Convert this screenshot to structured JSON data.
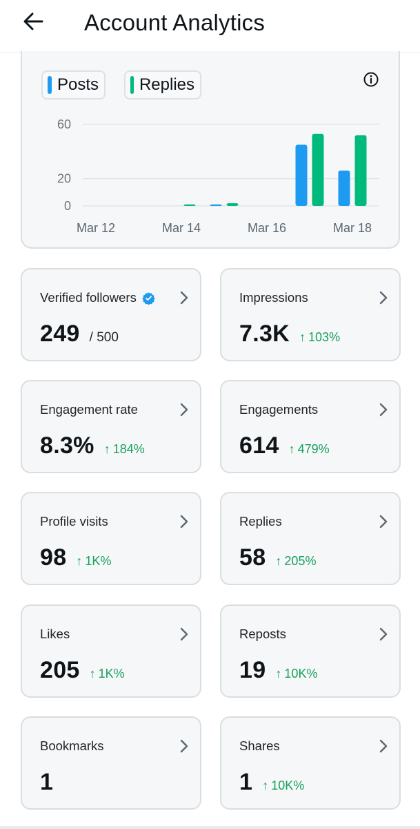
{
  "header": {
    "title": "Account Analytics",
    "back_icon": "arrow-left-icon"
  },
  "chart": {
    "legend": [
      {
        "label": "Posts",
        "color": "#1d9bf0"
      },
      {
        "label": "Replies",
        "color": "#00ba7c"
      }
    ],
    "info_icon": "info-icon"
  },
  "chart_data": {
    "type": "bar",
    "categories": [
      "Mar 12",
      "Mar 13",
      "Mar 14",
      "Mar 15",
      "Mar 16",
      "Mar 17",
      "Mar 18"
    ],
    "x_tick_labels": [
      "Mar 12",
      "Mar 14",
      "Mar 16",
      "Mar 18"
    ],
    "y_tick_labels": [
      "60",
      "20",
      "0"
    ],
    "ylim": [
      0,
      60
    ],
    "grid": true,
    "legend": "top-left",
    "series": [
      {
        "name": "Posts",
        "color": "#1d9bf0",
        "values": [
          0,
          0,
          0,
          1,
          0,
          45,
          26
        ]
      },
      {
        "name": "Replies",
        "color": "#00ba7c",
        "values": [
          0,
          0,
          1,
          2,
          0,
          53,
          52
        ]
      }
    ]
  },
  "stats": [
    {
      "label": "Verified followers",
      "value": "249",
      "suffix": "/ 500",
      "verified": true
    },
    {
      "label": "Impressions",
      "value": "7.3K",
      "change": "103%"
    },
    {
      "label": "Engagement rate",
      "value": "8.3%",
      "change": "184%"
    },
    {
      "label": "Engagements",
      "value": "614",
      "change": "479%"
    },
    {
      "label": "Profile visits",
      "value": "98",
      "change": "1K%"
    },
    {
      "label": "Replies",
      "value": "58",
      "change": "205%"
    },
    {
      "label": "Likes",
      "value": "205",
      "change": "1K%"
    },
    {
      "label": "Reposts",
      "value": "19",
      "change": "10K%"
    },
    {
      "label": "Bookmarks",
      "value": "1"
    },
    {
      "label": "Shares",
      "value": "1",
      "change": "10K%"
    }
  ],
  "colors": {
    "positive": "#17a05c",
    "card_bg": "#f5f7f8",
    "card_border": "#d9dee2"
  },
  "icons": {
    "card_chevron": "chevron-right-icon",
    "verified": "verified-badge-icon",
    "change": "arrow-up-icon"
  }
}
